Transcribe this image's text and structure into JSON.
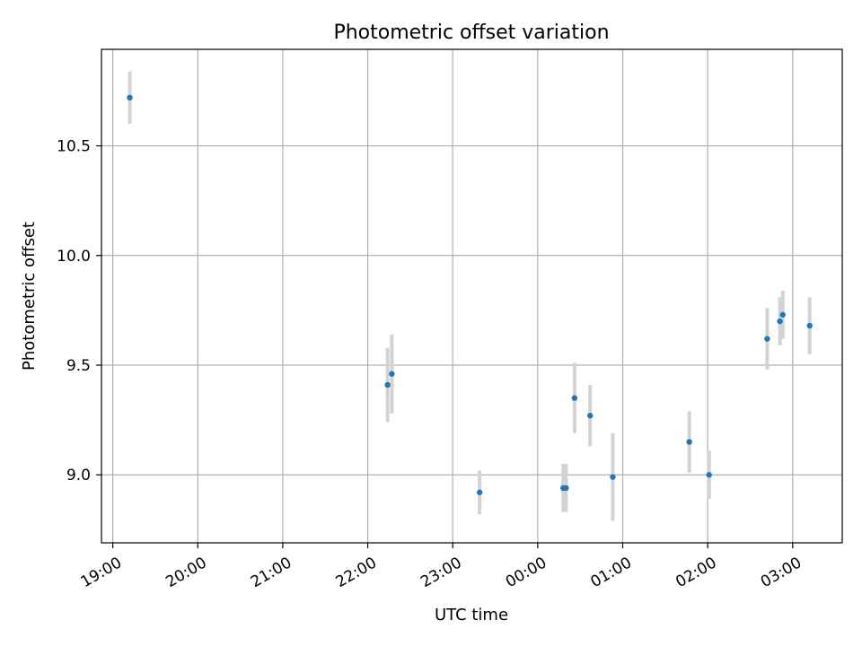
{
  "chart_data": {
    "type": "scatter",
    "title": "Photometric offset variation",
    "xlabel": "UTC time",
    "ylabel": "Photometric offset",
    "x_axis_type": "time",
    "x_start": "19:00",
    "xlim": [
      "18:52",
      "03:35"
    ],
    "ylim": [
      8.69,
      10.94
    ],
    "x_ticks": [
      "19:00",
      "20:00",
      "21:00",
      "22:00",
      "23:00",
      "00:00",
      "01:00",
      "02:00",
      "03:00"
    ],
    "y_ticks": [
      9.0,
      9.5,
      10.0,
      10.5
    ],
    "y_tick_labels": [
      "9.0",
      "9.5",
      "10.0",
      "10.5"
    ],
    "grid": true,
    "legend": "none",
    "colors": {
      "marker": "#1f77b4",
      "errorbar": "#d3d3d3",
      "grid": "#b0b0b0"
    },
    "points": [
      {
        "x": "19:12",
        "y": 10.72,
        "err": 0.12
      },
      {
        "x": "22:14",
        "y": 9.41,
        "err": 0.17
      },
      {
        "x": "22:17",
        "y": 9.46,
        "err": 0.18
      },
      {
        "x": "23:19",
        "y": 8.92,
        "err": 0.1
      },
      {
        "x": "00:18",
        "y": 8.94,
        "err": 0.11
      },
      {
        "x": "00:20",
        "y": 8.94,
        "err": 0.11
      },
      {
        "x": "00:26",
        "y": 9.35,
        "err": 0.16
      },
      {
        "x": "00:37",
        "y": 9.27,
        "err": 0.14
      },
      {
        "x": "00:53",
        "y": 8.99,
        "err": 0.2
      },
      {
        "x": "01:47",
        "y": 9.15,
        "err": 0.14
      },
      {
        "x": "02:01",
        "y": 9.0,
        "err": 0.11
      },
      {
        "x": "02:42",
        "y": 9.62,
        "err": 0.14
      },
      {
        "x": "02:51",
        "y": 9.7,
        "err": 0.11
      },
      {
        "x": "02:53",
        "y": 9.73,
        "err": 0.11
      },
      {
        "x": "03:12",
        "y": 9.68,
        "err": 0.13
      }
    ]
  }
}
